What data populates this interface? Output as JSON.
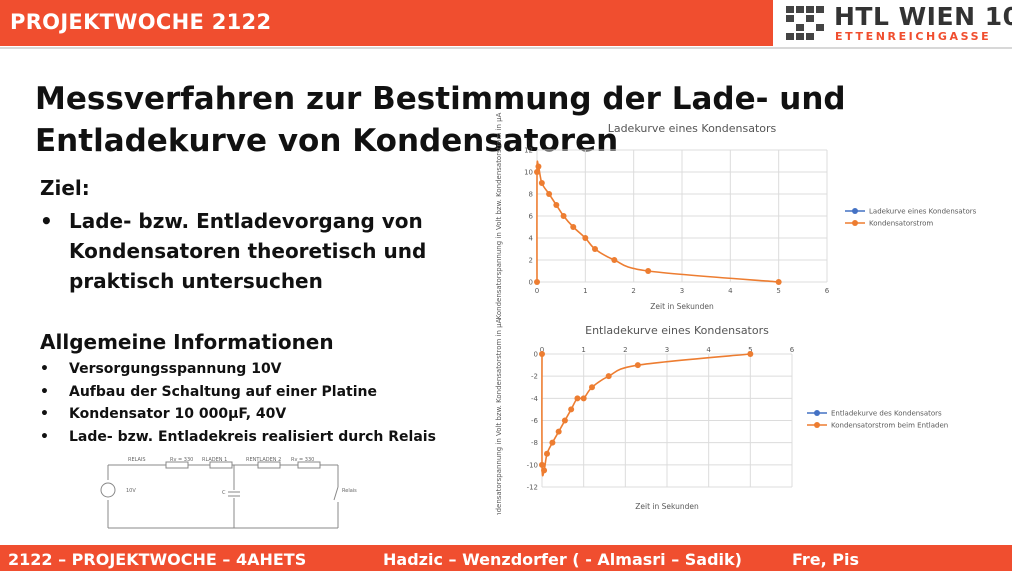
{
  "header": {
    "title": "PROJEKTWOCHE 2122",
    "logo_line1": "HTL WIEN 10",
    "logo_line2": "ETTENREICHGASSE"
  },
  "slide": {
    "headline": "Messverfahren zur Bestimmung der Lade- und Entladekurve von Kondensatoren",
    "ziel_heading": "Ziel:",
    "ziel_items": [
      "Lade- bzw. Entladevorgang von Kondensatoren theoretisch und praktisch untersuchen"
    ],
    "info_heading": "Allgemeine Informationen",
    "info_items": [
      "Versorgungsspannung 10V",
      "Aufbau der Schaltung auf einer Platine",
      "Kondensator 10 000µF, 40V",
      "Lade- bzw. Entladekreis realisiert durch Relais"
    ]
  },
  "circuit": {
    "labels": {
      "relais_top": "RELAIS",
      "rv1": "Rv = 330",
      "rladen": "RLADEN 1",
      "rentladen": "RENTLADEN 2",
      "rv2": "Rv = 330",
      "voltage": "10V",
      "cap": "C",
      "relais_right": "Relais"
    }
  },
  "footer": {
    "left": "2122 – PROJEKTWOCHE – 4AHETS",
    "center": "Hadzic – Wenzdorfer ( - Almasri – Sadik)",
    "right": "Fre, Pis"
  },
  "chart_data": [
    {
      "type": "scatter",
      "title": "Ladekurve eines Kondensators",
      "xlabel": "Zeit in Sekunden",
      "ylabel": "Kondensatorspannung in Volt bzw. Kondensatorstrom in µA",
      "xlim": [
        0,
        6
      ],
      "ylim": [
        0,
        12
      ],
      "xticks": [
        0,
        1,
        2,
        3,
        4,
        5,
        6
      ],
      "yticks": [
        0,
        2,
        4,
        6,
        8,
        10,
        12
      ],
      "grid": true,
      "legend_position": "right",
      "series": [
        {
          "name": "Ladekurve eines Kondensators",
          "color": "#4472c4",
          "points": []
        },
        {
          "name": "Kondensatorstrom",
          "color": "#ed7d31",
          "smooth": true,
          "points": [
            [
              0,
              0
            ],
            [
              0,
              10
            ],
            [
              0.03,
              10.5
            ],
            [
              0.1,
              9
            ],
            [
              0.25,
              8
            ],
            [
              0.4,
              7
            ],
            [
              0.55,
              6
            ],
            [
              0.75,
              5
            ],
            [
              1.0,
              4
            ],
            [
              1.2,
              3
            ],
            [
              1.6,
              2
            ],
            [
              2.3,
              1
            ],
            [
              5,
              0
            ]
          ]
        }
      ]
    },
    {
      "type": "scatter",
      "title": "Entladekurve eines Kondensators",
      "xlabel": "Zeit in Sekunden",
      "ylabel": "Kondensatorspannung in Volt bzw. Kondensatorstrom in µA",
      "xlim": [
        0,
        6
      ],
      "ylim": [
        -12,
        0
      ],
      "xticks": [
        0,
        1,
        2,
        3,
        4,
        5,
        6
      ],
      "yticks": [
        0,
        -2,
        -4,
        -6,
        -8,
        -10,
        -12
      ],
      "grid": true,
      "legend_position": "right",
      "series": [
        {
          "name": "Entladekurve des Kondensators",
          "color": "#4472c4",
          "points": []
        },
        {
          "name": "Kondensatorstrom beim Entladen",
          "color": "#ed7d31",
          "smooth": true,
          "points": [
            [
              0,
              0
            ],
            [
              0,
              -10
            ],
            [
              0.05,
              -10.5
            ],
            [
              0.12,
              -9
            ],
            [
              0.25,
              -8
            ],
            [
              0.4,
              -7
            ],
            [
              0.55,
              -6
            ],
            [
              0.7,
              -5
            ],
            [
              0.85,
              -4
            ],
            [
              1.0,
              -4
            ],
            [
              1.2,
              -3
            ],
            [
              1.6,
              -2
            ],
            [
              2.3,
              -1
            ],
            [
              5,
              0
            ]
          ]
        }
      ]
    }
  ]
}
